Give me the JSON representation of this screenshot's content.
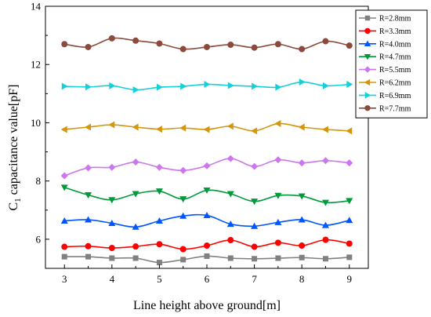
{
  "chart_data": {
    "type": "line",
    "xlabel": "Line height above ground[m]",
    "ylabel_main": "C",
    "ylabel_sub": "1",
    "ylabel_rest": " capacitance value[pF]",
    "xlim": [
      2.6,
      9.4
    ],
    "ylim": [
      5,
      14
    ],
    "xticks": [
      "3",
      "4",
      "5",
      "6",
      "7",
      "8",
      "9"
    ],
    "yticks": [
      "6",
      "8",
      "10",
      "12",
      "14"
    ],
    "x": [
      3,
      3.5,
      4,
      4.5,
      5,
      5.5,
      6,
      6.5,
      7,
      7.5,
      8,
      8.5,
      9
    ],
    "legend_position": "top-right",
    "series": [
      {
        "name": "R=2.8mm",
        "color": "#808080",
        "marker": "square",
        "values": [
          5.4,
          5.4,
          5.35,
          5.35,
          5.2,
          5.3,
          5.42,
          5.35,
          5.33,
          5.35,
          5.37,
          5.33,
          5.38
        ]
      },
      {
        "name": "R=3.3mm",
        "color": "#ff0000",
        "marker": "circle",
        "values": [
          5.74,
          5.76,
          5.7,
          5.75,
          5.83,
          5.66,
          5.78,
          5.97,
          5.74,
          5.88,
          5.78,
          5.98,
          5.85
        ]
      },
      {
        "name": "R=4.0mm",
        "color": "#0055ff",
        "marker": "triangle-up",
        "values": [
          6.63,
          6.67,
          6.55,
          6.42,
          6.63,
          6.8,
          6.82,
          6.52,
          6.45,
          6.58,
          6.67,
          6.48,
          6.65
        ]
      },
      {
        "name": "R=4.7mm",
        "color": "#009a3a",
        "marker": "triangle-down",
        "values": [
          7.78,
          7.52,
          7.35,
          7.56,
          7.65,
          7.38,
          7.68,
          7.56,
          7.3,
          7.5,
          7.48,
          7.26,
          7.32
        ]
      },
      {
        "name": "R=5.5mm",
        "color": "#cc77ee",
        "marker": "diamond",
        "values": [
          8.18,
          8.45,
          8.47,
          8.65,
          8.47,
          8.36,
          8.52,
          8.77,
          8.5,
          8.73,
          8.62,
          8.7,
          8.62
        ]
      },
      {
        "name": "R=6.2mm",
        "color": "#d4960a",
        "marker": "triangle-left",
        "values": [
          9.77,
          9.85,
          9.93,
          9.85,
          9.78,
          9.82,
          9.77,
          9.88,
          9.72,
          9.97,
          9.85,
          9.77,
          9.72
        ]
      },
      {
        "name": "R=6.9mm",
        "color": "#14d0d8",
        "marker": "triangle-right",
        "values": [
          11.25,
          11.23,
          11.27,
          11.13,
          11.22,
          11.25,
          11.32,
          11.28,
          11.25,
          11.22,
          11.4,
          11.27,
          11.32
        ]
      },
      {
        "name": "R=7.7mm",
        "color": "#8b4a3c",
        "marker": "circle",
        "values": [
          12.7,
          12.6,
          12.9,
          12.82,
          12.72,
          12.53,
          12.6,
          12.68,
          12.58,
          12.7,
          12.53,
          12.8,
          12.65
        ]
      }
    ]
  }
}
